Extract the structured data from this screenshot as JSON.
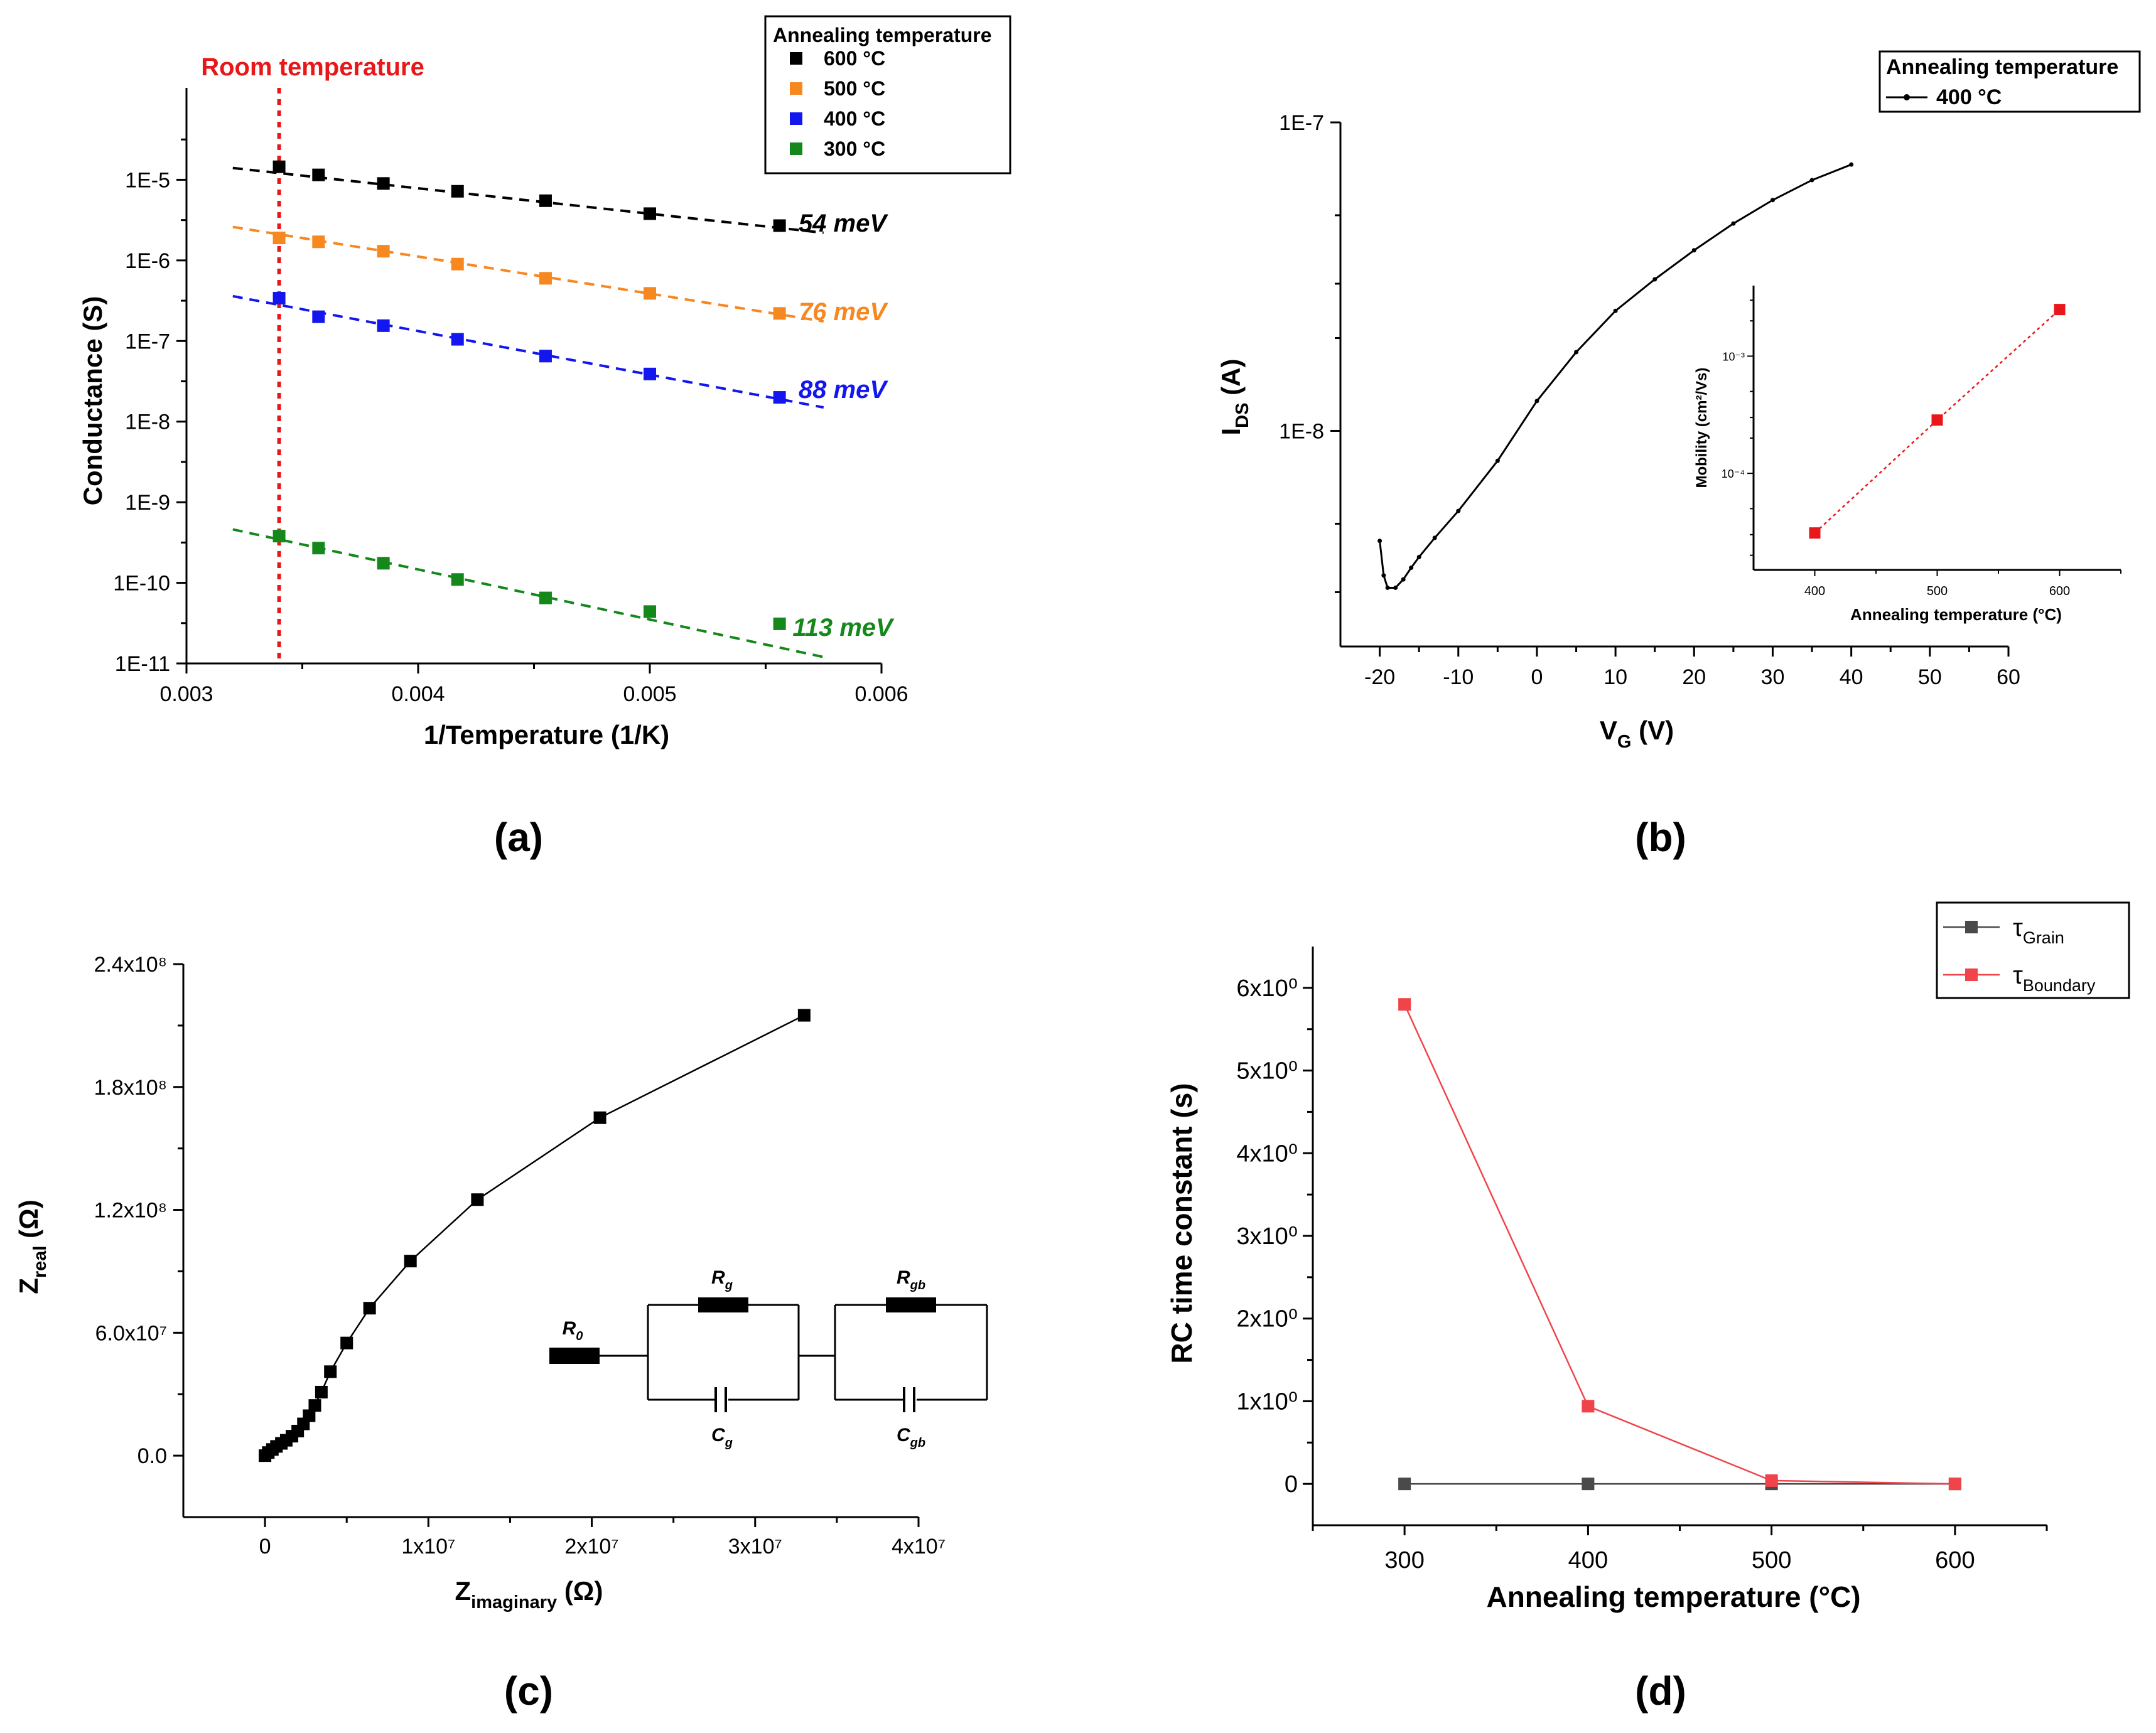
{
  "chart_data": [
    {
      "id": "a",
      "type": "scatter",
      "panel_label": "(a)",
      "xlabel": "1/Temperature (1/K)",
      "ylabel": "Conductance (S)",
      "yscale": "log",
      "xlim": [
        0.003,
        0.006
      ],
      "ylim": [
        1e-11,
        0.0001
      ],
      "xticks": [
        "0.003",
        "0.004",
        "0.005",
        "0.006"
      ],
      "yticks": [
        "1E-11",
        "1E-10",
        "1E-9",
        "1E-8",
        "1E-7",
        "1E-6",
        "1E-5"
      ],
      "annotation": {
        "label": "Room temperature",
        "x": 0.0034,
        "color": "#e8171a"
      },
      "legend": {
        "title": "Annealing temperature",
        "position": "top-right"
      },
      "series": [
        {
          "name": "600 °C",
          "color": "#000000",
          "activation_energy": "54 meV",
          "x": [
            0.0034,
            0.00357,
            0.00385,
            0.00417,
            0.00455,
            0.005,
            0.00556
          ],
          "y": [
            1.45e-05,
            1.15e-05,
            9e-06,
            7.2e-06,
            5.5e-06,
            3.8e-06,
            2.7e-06
          ],
          "fit": [
            [
              0.0032,
              1.4e-05
            ],
            [
              0.00575,
              2.2e-06
            ]
          ]
        },
        {
          "name": "500 °C",
          "color": "#f7871f",
          "activation_energy": "76 meV",
          "x": [
            0.0034,
            0.00357,
            0.00385,
            0.00417,
            0.00455,
            0.005,
            0.00556
          ],
          "y": [
            1.9e-06,
            1.7e-06,
            1.3e-06,
            9e-07,
            6e-07,
            3.9e-07,
            2.2e-07
          ],
          "fit": [
            [
              0.0032,
              2.6e-06
            ],
            [
              0.00575,
              1.75e-07
            ]
          ]
        },
        {
          "name": "400 °C",
          "color": "#1316ee",
          "activation_energy": "88 meV",
          "x": [
            0.0034,
            0.00357,
            0.00385,
            0.00417,
            0.00455,
            0.005,
            0.00556
          ],
          "y": [
            3.4e-07,
            2e-07,
            1.55e-07,
            1.05e-07,
            6.5e-08,
            3.9e-08,
            2e-08
          ],
          "fit": [
            [
              0.0032,
              3.6e-07
            ],
            [
              0.00575,
              1.5e-08
            ]
          ]
        },
        {
          "name": "300 °C",
          "color": "#14881a",
          "activation_energy": "113 meV",
          "x": [
            0.0034,
            0.00357,
            0.00385,
            0.00417,
            0.00455,
            0.005,
            0.00556
          ],
          "y": [
            3.8e-10,
            2.7e-10,
            1.75e-10,
            1.1e-10,
            6.5e-11,
            4.4e-11,
            3.1e-11
          ],
          "fit": [
            [
              0.0032,
              4.6e-10
            ],
            [
              0.00575,
              1.2e-11
            ]
          ]
        }
      ]
    },
    {
      "id": "b",
      "type": "line",
      "panel_label": "(b)",
      "xlabel": "V",
      "xlabel_sub": "G",
      "xlabel_unit": " (V)",
      "ylabel": "I",
      "ylabel_sub": "DS",
      "ylabel_unit": " (A)",
      "yscale": "log",
      "xlim": [
        -25,
        60
      ],
      "ylim": [
        2e-09,
        1e-07
      ],
      "xticks": [
        "-20",
        "-10",
        "0",
        "10",
        "20",
        "30",
        "40",
        "50",
        "60"
      ],
      "yticks": [
        "1E-8",
        "1E-7"
      ],
      "legend": {
        "title": "Annealing temperature",
        "position": "top-right"
      },
      "series": [
        {
          "name": "400 °C",
          "color": "#000000",
          "x": [
            -20,
            -19.5,
            -19,
            -18,
            -17,
            -16,
            -15,
            -13,
            -10,
            -5,
            0,
            5,
            10,
            15,
            20,
            25,
            30,
            35,
            40
          ],
          "y": [
            4.4e-09,
            3.4e-09,
            3.1e-09,
            3.1e-09,
            3.3e-09,
            3.6e-09,
            3.9e-09,
            4.5e-09,
            5.5e-09,
            8e-09,
            1.25e-08,
            1.8e-08,
            2.45e-08,
            3.1e-08,
            3.85e-08,
            4.7e-08,
            5.6e-08,
            6.5e-08,
            7.3e-08
          ]
        }
      ],
      "inset": {
        "type": "line",
        "xlabel": "Annealing temperature (°C)",
        "ylabel": "Mobility (cm²/Vs)",
        "yscale": "log",
        "xlim": [
          350,
          650
        ],
        "ylim": [
          1.5e-05,
          0.004
        ],
        "xticks": [
          "400",
          "500",
          "600"
        ],
        "yticks": [
          "10⁻⁴",
          "10⁻³"
        ],
        "color": "#e8171a",
        "x": [
          400,
          500,
          600
        ],
        "y": [
          3.1e-05,
          0.000285,
          0.0025
        ]
      }
    },
    {
      "id": "c",
      "type": "line",
      "panel_label": "(c)",
      "xlabel": "Z",
      "xlabel_sub": "imaginary",
      "xlabel_unit": " (Ω)",
      "ylabel": "Z",
      "ylabel_sub": "real",
      "ylabel_unit": " (Ω)",
      "xlim": [
        -5000000.0,
        40000000.0
      ],
      "ylim": [
        -30000000.0,
        240000000.0
      ],
      "xticks": [
        "0",
        "1x10⁷",
        "2x10⁷",
        "3x10⁷",
        "4x10⁷"
      ],
      "yticks": [
        "0.0",
        "6.0x10⁷",
        "1.2x10⁸",
        "1.8x10⁸",
        "2.4x10⁸"
      ],
      "color": "#000000",
      "x": [
        0,
        200000,
        450000,
        700000,
        1000000,
        1300000,
        1650000,
        2000000,
        2350000,
        2700000,
        3050000,
        3450000,
        4000000,
        5000000,
        6400000,
        8900000,
        13000000,
        20500000,
        33000000
      ],
      "y": [
        0,
        1500000,
        3000000,
        4500000,
        6000000,
        7500000,
        9500000,
        12000000,
        15500000,
        19500000,
        24500000,
        31000000,
        41000000,
        55000000,
        72000000,
        95000000,
        125000000,
        165000000,
        215000000
      ],
      "circuit": {
        "r0": "R",
        "r0_sub": "0",
        "rg": "R",
        "rg_sub": "g",
        "cg": "C",
        "cg_sub": "g",
        "rgb": "R",
        "rgb_sub": "gb",
        "cgb": "C",
        "cgb_sub": "gb"
      }
    },
    {
      "id": "d",
      "type": "line",
      "panel_label": "(d)",
      "xlabel": "Annealing temperature (°C)",
      "ylabel": "RC time constant (s)",
      "xlim": [
        250,
        650
      ],
      "ylim": [
        -0.5,
        6.5
      ],
      "xticks": [
        "300",
        "400",
        "500",
        "600"
      ],
      "yticks": [
        "0",
        "1x10⁰",
        "2x10⁰",
        "3x10⁰",
        "4x10⁰",
        "5x10⁰",
        "6x10⁰"
      ],
      "legend": {
        "position": "top-right"
      },
      "series": [
        {
          "name": "τ",
          "name_sub": "Grain",
          "color": "#4a4a4a",
          "x": [
            300,
            400,
            500,
            600
          ],
          "y": [
            0,
            0,
            0,
            0
          ]
        },
        {
          "name": "τ",
          "name_sub": "Boundary",
          "color": "#f0444a",
          "x": [
            300,
            400,
            500,
            600
          ],
          "y": [
            5.8,
            0.94,
            0.04,
            0.0
          ]
        }
      ]
    }
  ]
}
